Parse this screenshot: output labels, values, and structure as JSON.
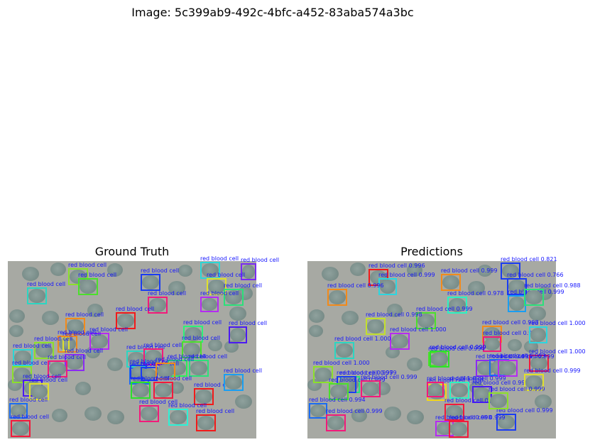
{
  "figure_title": "Image: 5c399ab9-492c-4bfc-a452-83aba574a3bc",
  "panels": [
    {
      "title": "Ground Truth",
      "detections": [
        {
          "label": "red blood cell",
          "color": "#8be02b"
        },
        {
          "label": "red blood cell",
          "color": "#4be02b"
        },
        {
          "label": "red blood cell",
          "color": "#2bd6c2"
        },
        {
          "label": "red blood cell",
          "color": "#1a3cf2"
        },
        {
          "label": "red blood cell",
          "color": "#2bd6d6"
        },
        {
          "label": "red blood cell",
          "color": "#7a2bf2"
        },
        {
          "label": "red blood cell",
          "color": "#e0e02b"
        },
        {
          "label": "red blood cell",
          "color": "#2be07a"
        },
        {
          "label": "red blood cell",
          "color": "#f21a7a"
        },
        {
          "label": "red blood cell",
          "color": "#b42bf2"
        },
        {
          "label": "red blood cell",
          "color": "#f28a1a"
        },
        {
          "label": "red blood cell",
          "color": "#f21a1a"
        },
        {
          "label": "red blood cell",
          "color": "#2bf27a"
        },
        {
          "label": "red blood cell",
          "color": "#4b1af2"
        },
        {
          "label": "red blood cell",
          "color": "#b42bf2"
        },
        {
          "label": "red blood cell",
          "color": "#f28a1a"
        },
        {
          "label": "red blood cell",
          "color": "#e0e02b"
        },
        {
          "label": "red blood cell",
          "color": "#8be02b"
        },
        {
          "label": "red blood cell",
          "color": "#4be02b"
        },
        {
          "label": "red blood cell",
          "color": "#2bd6c2"
        },
        {
          "label": "red blood cell",
          "color": "#f21a7a"
        },
        {
          "label": "red blood cell",
          "color": "#2bf25a"
        },
        {
          "label": "red blood cell",
          "color": "#2bd6d6"
        },
        {
          "label": "red blood cell",
          "color": "#8b2bf2"
        },
        {
          "label": "red blood cell",
          "color": "#8be02b"
        },
        {
          "label": "red blood cell",
          "color": "#f21a7a"
        },
        {
          "label": "red blood cell",
          "color": "#2be07a"
        },
        {
          "label": "red blood cell",
          "color": "#1a6cf2"
        },
        {
          "label": "red blood cell",
          "color": "#1a3cf2"
        },
        {
          "label": "red blood cell",
          "color": "#1a3cf2"
        },
        {
          "label": "red blood cell",
          "color": "#f28a1a"
        },
        {
          "label": "red blood cell",
          "color": "#f21a3c"
        },
        {
          "label": "red blood cell",
          "color": "#4b1af2"
        },
        {
          "label": "red blood cell",
          "color": "#f21a1a"
        },
        {
          "label": "red blood cell",
          "color": "#e0e02b"
        },
        {
          "label": "red blood cell",
          "color": "#1a9ef2"
        },
        {
          "label": "red blood cell",
          "color": "#1a6cf2"
        },
        {
          "label": "red blood cell",
          "color": "#2be02b"
        },
        {
          "label": "red blood cell",
          "color": "#f21a7a"
        },
        {
          "label": "red blood cell",
          "color": "#2bf2d6"
        },
        {
          "label": "red blood cell",
          "color": "#f21a1a"
        },
        {
          "label": "red blood cell",
          "color": "#f21a3c"
        }
      ]
    },
    {
      "title": "Predictions",
      "detections": [
        {
          "label": "red blood cell 0.996",
          "color": "#f21a1a"
        },
        {
          "label": "red blood cell 0.999",
          "color": "#2bd6e0"
        },
        {
          "label": "red blood cell 0.999",
          "color": "#f28a1a"
        },
        {
          "label": "red blood cell 0.821",
          "color": "#1a3cf2"
        },
        {
          "label": "red blood cell 0.766",
          "color": "#1a3cf2"
        },
        {
          "label": "red blood cell 0.999",
          "color": "#1a9ef2"
        },
        {
          "label": "red blood cell 0.988",
          "color": "#2be07a"
        },
        {
          "label": "red blood cell 0.996",
          "color": "#f28a1a"
        },
        {
          "label": "red blood cell 0.978",
          "color": "#2bf2c2"
        },
        {
          "label": "red blood cell 0.999",
          "color": "#4be02b"
        },
        {
          "label": "red blood cell 0.998",
          "color": "#c2e02b"
        },
        {
          "label": "red blood cell 1.000",
          "color": "#b42bf2"
        },
        {
          "label": "red blood cell 0.998",
          "color": "#f28a1a"
        },
        {
          "label": "red blood cell 0.999",
          "color": "#f21a7a"
        },
        {
          "label": "red blood cell 1.000",
          "color": "#2bd6e0"
        },
        {
          "label": "red blood cell 1.000",
          "color": "#2bd6c2"
        },
        {
          "label": "red blood cell 0.999",
          "color": "#f21a3c"
        },
        {
          "label": "red blood cell 0.994",
          "color": "#4be02b"
        },
        {
          "label": "red blood cell 0.999",
          "color": "#8b2bf2"
        },
        {
          "label": "red blood cell 1.000",
          "color": "#f21a3c"
        },
        {
          "label": "red blood cell 1.000",
          "color": "#8be02b"
        },
        {
          "label": "red blood cell 0.999",
          "color": "#2be07a"
        },
        {
          "label": "red blood cell 0.997",
          "color": "#1a3cf2"
        },
        {
          "label": "red blood cell 0.999",
          "color": "#1a6cf2"
        },
        {
          "label": "red blood cell 0.999",
          "color": "#2be02b"
        },
        {
          "label": "red blood cell 0.999",
          "color": "#4be02b"
        },
        {
          "label": "red blood cell 0.999",
          "color": "#f21a7a"
        },
        {
          "label": "red blood cell 1.000",
          "color": "#f2d61a"
        },
        {
          "label": "red blood cell 0.999",
          "color": "#b42bf2"
        },
        {
          "label": "red blood cell 0.999",
          "color": "#4b1af2"
        },
        {
          "label": "red blood cell 0.999",
          "color": "#e0e02b"
        },
        {
          "label": "red blood cell 0.999",
          "color": "#2bf2c2"
        },
        {
          "label": "red blood cell 1.000",
          "color": "#f21a7a"
        },
        {
          "label": "red blood cell 0.994",
          "color": "#1a6cf2"
        },
        {
          "label": "red blood cell 0.999",
          "color": "#f21a7a"
        },
        {
          "label": "red blood cell 0.999",
          "color": "#f21a3c"
        },
        {
          "label": "red blood cell 0.999",
          "color": "#1a3cf2"
        },
        {
          "label": "red blood cell 0.998",
          "color": "#b42bf2"
        },
        {
          "label": "red blood cell 0.999",
          "color": "#f21a3c"
        },
        {
          "label": "red blood cell 0.999",
          "color": "#8be02b"
        }
      ]
    }
  ]
}
